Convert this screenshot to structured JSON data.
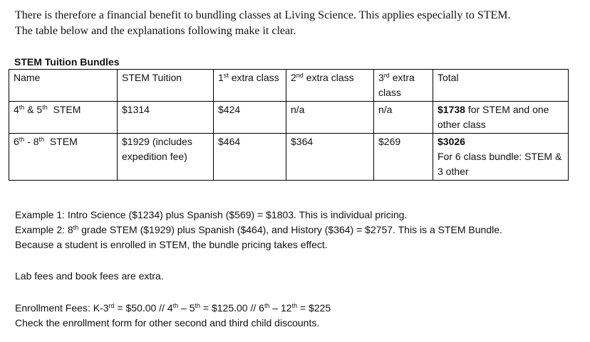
{
  "intro": {
    "line1": "There is therefore a financial benefit to bundling classes at Living Science.  This applies especially to STEM.",
    "line2": "The table below and the explanations following make it clear."
  },
  "table": {
    "caption": "STEM Tuition Bundles",
    "headers": {
      "name": "Name",
      "tuition": "STEM Tuition",
      "extra1": {
        "num": "1",
        "sup": "st",
        "rest": " extra class"
      },
      "extra2": {
        "num": "2",
        "sup": "nd",
        "rest": " extra class"
      },
      "extra3": {
        "num": "3",
        "sup": "rd",
        "rest": " extra class"
      },
      "total": "Total"
    },
    "rows": [
      {
        "name": {
          "a": "4",
          "a_sup": "th",
          "mid": " & 5",
          "b_sup": "th",
          "end": "  STEM"
        },
        "tuition": "$1314",
        "extra1": "$424",
        "extra2": "n/a",
        "extra3": "n/a",
        "total_bold": "$1738",
        "total_rest": " for STEM and one other class",
        "total_line2": ""
      },
      {
        "name": {
          "a": "6",
          "a_sup": "th",
          "mid": " - 8",
          "b_sup": "th",
          "end": "  STEM"
        },
        "tuition": "$1929 (includes expedition fee)",
        "extra1": "$464",
        "extra2": "$364",
        "extra3": "$269",
        "total_bold": "$3026",
        "total_rest": "",
        "total_line2": "For 6 class bundle: STEM & 3 other"
      }
    ]
  },
  "examples": {
    "ex1": "Example 1:  Intro Science ($1234) plus Spanish ($569) = $1803.  This is individual pricing.",
    "ex2_a": "Example 2:  8",
    "ex2_sup": "th",
    "ex2_b": " grade STEM ($1929) plus Spanish ($464), and History ($364) = $2757. This is a STEM Bundle.",
    "ex3": "Because a student is enrolled in STEM, the bundle pricing takes effect."
  },
  "lab_fees": "Lab fees and book fees are extra.",
  "enrollment": {
    "p1": "Enrollment Fees: K-3",
    "s1": "rd",
    "p2": " = $50.00 // 4",
    "s2": "th",
    "p3": " – 5",
    "s3": "th",
    "p4": " = $125.00 // 6",
    "s4": "th",
    "p5": " – 12",
    "s5": "th",
    "p6": " = $225",
    "check": "Check the enrollment form for other second and third child discounts."
  }
}
